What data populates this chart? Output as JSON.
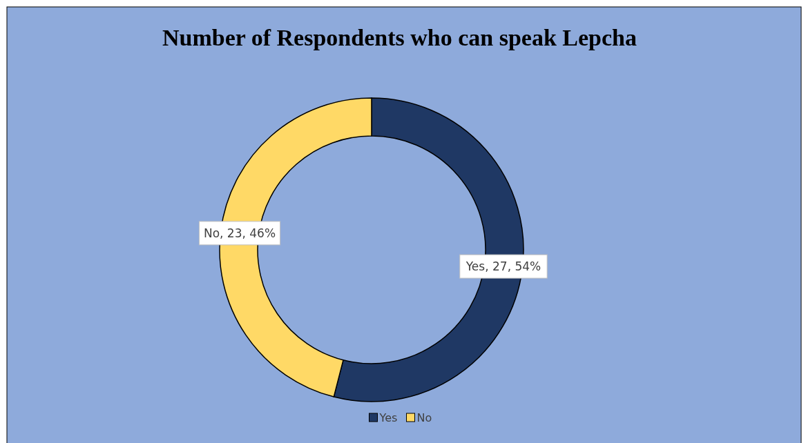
{
  "chart_data": {
    "type": "donut",
    "title": "Number of Respondents who can speak Lepcha",
    "categories": [
      "Yes",
      "No"
    ],
    "values": [
      27,
      23
    ],
    "colors": [
      "#1f3864",
      "#ffd966"
    ],
    "value_labels": [
      "Yes, 27, 54%",
      "No, 23, 46%"
    ],
    "legend": "bottom"
  }
}
